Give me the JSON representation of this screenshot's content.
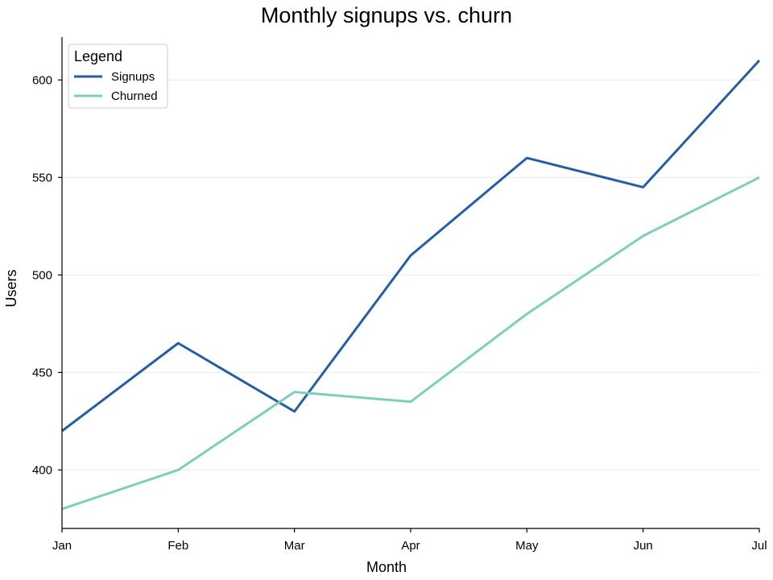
{
  "chart_data": {
    "type": "line",
    "title": "Monthly signups vs. churn",
    "xlabel": "Month",
    "ylabel": "Users",
    "categories": [
      "Jan",
      "Feb",
      "Mar",
      "Apr",
      "May",
      "Jun",
      "Jul"
    ],
    "series": [
      {
        "name": "Signups",
        "color": "#255ea3",
        "values": [
          420,
          465,
          430,
          510,
          560,
          545,
          610
        ]
      },
      {
        "name": "Churned",
        "color": "#7fcdbb",
        "values": [
          380,
          400,
          440,
          435,
          480,
          520,
          550
        ]
      }
    ],
    "ylim": [
      370,
      622
    ],
    "yticks": [
      400,
      450,
      500,
      550,
      600
    ],
    "grid": "horizontal",
    "legend": {
      "title": "Legend",
      "placement": "top-left"
    }
  }
}
